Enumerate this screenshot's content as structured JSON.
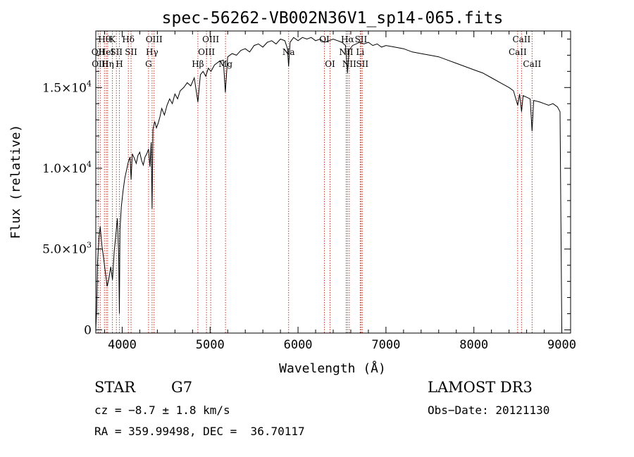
{
  "chart_data": {
    "type": "line",
    "title": "spec-56262-VB002N36V1_sp14-065.fits",
    "xlabel": "Wavelength (Å)",
    "ylabel": "Flux (relative)",
    "xlim": [
      3700,
      9100
    ],
    "ylim": [
      -200,
      18500
    ],
    "x_ticks": [
      4000,
      5000,
      6000,
      7000,
      8000,
      9000
    ],
    "x_tick_labels": [
      "4000",
      "5000",
      "6000",
      "7000",
      "8000",
      "9000"
    ],
    "y_ticks": [
      0,
      5000,
      10000,
      15000
    ],
    "y_tick_labels": [
      {
        "mant": "0",
        "exp": ""
      },
      {
        "mant": "5.0×10",
        "exp": "3"
      },
      {
        "mant": "1.0×10",
        "exp": "4"
      },
      {
        "mant": "1.5×10",
        "exp": "4"
      }
    ],
    "line_color": "#000000",
    "marker_color": "#c0392b",
    "spectrum": {
      "name": "flux",
      "points": [
        [
          3700,
          0
        ],
        [
          3710,
          1200
        ],
        [
          3720,
          4200
        ],
        [
          3735,
          5600
        ],
        [
          3750,
          6400
        ],
        [
          3770,
          5200
        ],
        [
          3790,
          4400
        ],
        [
          3810,
          3500
        ],
        [
          3830,
          2700
        ],
        [
          3850,
          3200
        ],
        [
          3870,
          3900
        ],
        [
          3890,
          3100
        ],
        [
          3910,
          4900
        ],
        [
          3925,
          5700
        ],
        [
          3945,
          6900
        ],
        [
          3960,
          4600
        ],
        [
          3968,
          1000
        ],
        [
          3975,
          6200
        ],
        [
          3990,
          7600
        ],
        [
          4010,
          8600
        ],
        [
          4030,
          9400
        ],
        [
          4050,
          9900
        ],
        [
          4070,
          10400
        ],
        [
          4090,
          10700
        ],
        [
          4101,
          9300
        ],
        [
          4115,
          10900
        ],
        [
          4140,
          10600
        ],
        [
          4160,
          10300
        ],
        [
          4180,
          10800
        ],
        [
          4200,
          11000
        ],
        [
          4220,
          10500
        ],
        [
          4240,
          10200
        ],
        [
          4260,
          10700
        ],
        [
          4280,
          10900
        ],
        [
          4300,
          11200
        ],
        [
          4315,
          10100
        ],
        [
          4330,
          11600
        ],
        [
          4340,
          7500
        ],
        [
          4350,
          12400
        ],
        [
          4370,
          12900
        ],
        [
          4390,
          12500
        ],
        [
          4410,
          12800
        ],
        [
          4430,
          13200
        ],
        [
          4450,
          13700
        ],
        [
          4480,
          13300
        ],
        [
          4510,
          13900
        ],
        [
          4540,
          14300
        ],
        [
          4570,
          14000
        ],
        [
          4600,
          14600
        ],
        [
          4630,
          14300
        ],
        [
          4660,
          14800
        ],
        [
          4700,
          15000
        ],
        [
          4740,
          15300
        ],
        [
          4780,
          15100
        ],
        [
          4820,
          15600
        ],
        [
          4861,
          14100
        ],
        [
          4890,
          15800
        ],
        [
          4920,
          16000
        ],
        [
          4950,
          15700
        ],
        [
          4980,
          16200
        ],
        [
          5010,
          16000
        ],
        [
          5050,
          16400
        ],
        [
          5100,
          16600
        ],
        [
          5150,
          16700
        ],
        [
          5173,
          14700
        ],
        [
          5200,
          16900
        ],
        [
          5250,
          17100
        ],
        [
          5300,
          17000
        ],
        [
          5350,
          17300
        ],
        [
          5400,
          17400
        ],
        [
          5450,
          17200
        ],
        [
          5500,
          17600
        ],
        [
          5550,
          17700
        ],
        [
          5600,
          17500
        ],
        [
          5650,
          17800
        ],
        [
          5700,
          17900
        ],
        [
          5750,
          17700
        ],
        [
          5800,
          18000
        ],
        [
          5850,
          17900
        ],
        [
          5880,
          17400
        ],
        [
          5893,
          16300
        ],
        [
          5910,
          17800
        ],
        [
          5950,
          18100
        ],
        [
          6000,
          17900
        ],
        [
          6050,
          18100
        ],
        [
          6100,
          18000
        ],
        [
          6150,
          18100
        ],
        [
          6200,
          17900
        ],
        [
          6250,
          18000
        ],
        [
          6300,
          17800
        ],
        [
          6350,
          17900
        ],
        [
          6400,
          18000
        ],
        [
          6450,
          17900
        ],
        [
          6500,
          17800
        ],
        [
          6540,
          17600
        ],
        [
          6563,
          15900
        ],
        [
          6580,
          17300
        ],
        [
          6620,
          17600
        ],
        [
          6660,
          17700
        ],
        [
          6700,
          17800
        ],
        [
          6750,
          17700
        ],
        [
          6800,
          17800
        ],
        [
          6850,
          17600
        ],
        [
          6900,
          17700
        ],
        [
          6950,
          17500
        ],
        [
          7000,
          17600
        ],
        [
          7100,
          17500
        ],
        [
          7200,
          17400
        ],
        [
          7300,
          17200
        ],
        [
          7400,
          17100
        ],
        [
          7500,
          17000
        ],
        [
          7600,
          16900
        ],
        [
          7700,
          16700
        ],
        [
          7800,
          16500
        ],
        [
          7900,
          16300
        ],
        [
          8000,
          16100
        ],
        [
          8100,
          15900
        ],
        [
          8200,
          15600
        ],
        [
          8300,
          15300
        ],
        [
          8400,
          15000
        ],
        [
          8450,
          14800
        ],
        [
          8498,
          13900
        ],
        [
          8520,
          14600
        ],
        [
          8542,
          13500
        ],
        [
          8560,
          14500
        ],
        [
          8600,
          14400
        ],
        [
          8640,
          14300
        ],
        [
          8662,
          12300
        ],
        [
          8680,
          14200
        ],
        [
          8750,
          14100
        ],
        [
          8800,
          14000
        ],
        [
          8850,
          13900
        ],
        [
          8900,
          14000
        ],
        [
          8950,
          13800
        ],
        [
          8980,
          13500
        ],
        [
          8990,
          6500
        ],
        [
          9000,
          0
        ]
      ]
    },
    "line_markers": [
      {
        "wave": 3727,
        "label": "OII",
        "row": 1
      },
      {
        "wave": 3750,
        "label": "OIII",
        "row": 2
      },
      {
        "wave": 3798,
        "label": "Hθ",
        "row": 0
      },
      {
        "wave": 3820,
        "label": "HeI",
        "row": 1
      },
      {
        "wave": 3835,
        "label": "Hη",
        "row": 2
      },
      {
        "wave": 3889,
        "label": "K",
        "row": 0
      },
      {
        "wave": 3934,
        "label": "SII",
        "row": 1
      },
      {
        "wave": 3968,
        "label": "H",
        "row": 2
      },
      {
        "wave": 4070,
        "label": "Hδ",
        "row": 0
      },
      {
        "wave": 4101,
        "label": "SII",
        "row": 1
      },
      {
        "wave": 4300,
        "label": "G",
        "row": 2
      },
      {
        "wave": 4340,
        "label": "Hγ",
        "row": 1
      },
      {
        "wave": 4363,
        "label": "OIII",
        "row": 0
      },
      {
        "wave": 4861,
        "label": "Hβ",
        "row": 2
      },
      {
        "wave": 4959,
        "label": "OIII",
        "row": 1
      },
      {
        "wave": 5007,
        "label": "OIII",
        "row": 0
      },
      {
        "wave": 5175,
        "label": "Mg",
        "row": 2
      },
      {
        "wave": 5893,
        "label": "Na",
        "row": 1
      },
      {
        "wave": 6300,
        "label": "OI",
        "row": 0
      },
      {
        "wave": 6364,
        "label": "OI",
        "row": 2
      },
      {
        "wave": 6548,
        "label": "NII",
        "row": 1
      },
      {
        "wave": 6563,
        "label": "Hα",
        "row": 0
      },
      {
        "wave": 6583,
        "label": "NII",
        "row": 2
      },
      {
        "wave": 6707,
        "label": "Li",
        "row": 1
      },
      {
        "wave": 6716,
        "label": "SII",
        "row": 0
      },
      {
        "wave": 6731,
        "label": "SII",
        "row": 2
      },
      {
        "wave": 8498,
        "label": "CaII",
        "row": 1
      },
      {
        "wave": 8542,
        "label": "CaII",
        "row": 0
      },
      {
        "wave": 8662,
        "label": "CaII",
        "row": 2
      }
    ]
  },
  "info": {
    "object_class": "STAR",
    "subclass": "G7",
    "survey": "LAMOST DR3",
    "velocity": "cz = −8.7 ± 1.8 km/s",
    "obs_date": "Obs−Date: 20121130",
    "coords": "RA = 359.99498, DEC =  36.70117"
  }
}
